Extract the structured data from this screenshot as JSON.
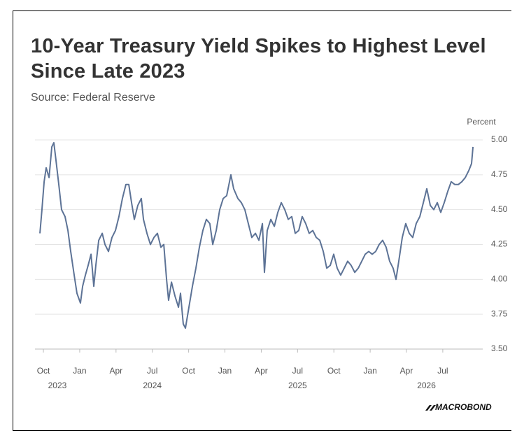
{
  "chart_data": {
    "type": "line",
    "title": "10-Year Treasury Yield Spikes to Highest Level Since Late 2023",
    "subtitle": "Source: Federal Reserve",
    "y_axis_label": "Percent",
    "logo": "MACROBOND",
    "color": "#5d7396",
    "grid": true,
    "xlim": [
      2023.692,
      2026.775
    ],
    "xticks": [
      {
        "value": 2023.75,
        "label": "Oct"
      },
      {
        "value": 2024.0,
        "label": "Jan"
      },
      {
        "value": 2024.25,
        "label": "Apr"
      },
      {
        "value": 2024.5,
        "label": "Jul"
      },
      {
        "value": 2024.75,
        "label": "Oct"
      },
      {
        "value": 2025.0,
        "label": "Jan"
      },
      {
        "value": 2025.25,
        "label": "Apr"
      },
      {
        "value": 2025.5,
        "label": "Jul"
      },
      {
        "value": 2025.75,
        "label": "Oct"
      },
      {
        "value": 2026.0,
        "label": "Jan"
      },
      {
        "value": 2026.25,
        "label": "Apr"
      },
      {
        "value": 2026.5,
        "label": "Jul"
      }
    ],
    "year_labels": [
      2023,
      2024,
      2025,
      2026
    ],
    "ylim": [
      3.5,
      5.0
    ],
    "yticks": [
      {
        "value": 3.5,
        "label": "3.50"
      },
      3.75,
      {
        "value": 4.0,
        "label": "4.00"
      },
      4.25,
      {
        "value": 4.5,
        "label": "4.50"
      },
      4.75,
      {
        "value": 5.0,
        "label": "5.00"
      }
    ],
    "x": [
      2023.726,
      2023.74,
      2023.755,
      2023.769,
      2023.789,
      2023.808,
      2023.822,
      2023.837,
      2023.856,
      2023.875,
      2023.899,
      2023.919,
      2023.938,
      2023.962,
      2023.981,
      2024.005,
      2024.02,
      2024.039,
      2024.058,
      2024.078,
      2024.097,
      2024.111,
      2024.131,
      2024.155,
      2024.174,
      2024.198,
      2024.222,
      2024.246,
      2024.27,
      2024.294,
      2024.318,
      2024.338,
      2024.357,
      2024.376,
      2024.4,
      2024.424,
      2024.439,
      2024.463,
      2024.487,
      2024.511,
      2024.535,
      2024.559,
      2024.579,
      2024.598,
      2024.612,
      2024.632,
      2024.656,
      2024.68,
      2024.694,
      2024.713,
      2024.728,
      2024.752,
      2024.776,
      2024.8,
      2024.824,
      2024.848,
      2024.872,
      2024.896,
      2024.916,
      2024.94,
      2024.964,
      2024.988,
      2025.012,
      2025.041,
      2025.06,
      2025.089,
      2025.113,
      2025.137,
      2025.161,
      2025.185,
      2025.21,
      2025.234,
      2025.258,
      2025.272,
      2025.291,
      2025.316,
      2025.34,
      2025.364,
      2025.388,
      2025.412,
      2025.436,
      2025.46,
      2025.484,
      2025.508,
      2025.532,
      2025.556,
      2025.58,
      2025.605,
      2025.629,
      2025.653,
      2025.677,
      2025.701,
      2025.725,
      2025.749,
      2025.773,
      2025.797,
      2025.821,
      2025.845,
      2025.869,
      2025.894,
      2025.918,
      2025.942,
      2025.966,
      2025.99,
      2026.014,
      2026.038,
      2026.062,
      2026.086,
      2026.11,
      2026.134,
      2026.158,
      2026.178,
      2026.197,
      2026.221,
      2026.245,
      2026.269,
      2026.293,
      2026.317,
      2026.342,
      2026.366,
      2026.39,
      2026.414,
      2026.438,
      2026.462,
      2026.486,
      2026.51,
      2026.534,
      2026.558,
      2026.583,
      2026.607,
      2026.631,
      2026.655,
      2026.679,
      2026.698,
      2026.708
    ],
    "values": [
      4.33,
      4.5,
      4.7,
      4.8,
      4.73,
      4.95,
      4.98,
      4.85,
      4.68,
      4.5,
      4.45,
      4.35,
      4.2,
      4.03,
      3.9,
      3.83,
      3.95,
      4.03,
      4.1,
      4.18,
      3.95,
      4.1,
      4.28,
      4.33,
      4.25,
      4.2,
      4.3,
      4.35,
      4.45,
      4.58,
      4.68,
      4.68,
      4.55,
      4.43,
      4.53,
      4.58,
      4.43,
      4.33,
      4.25,
      4.3,
      4.33,
      4.23,
      4.25,
      4.0,
      3.85,
      3.98,
      3.88,
      3.8,
      3.9,
      3.68,
      3.65,
      3.8,
      3.95,
      4.08,
      4.23,
      4.35,
      4.43,
      4.4,
      4.25,
      4.35,
      4.5,
      4.58,
      4.6,
      4.75,
      4.65,
      4.58,
      4.55,
      4.5,
      4.4,
      4.3,
      4.33,
      4.28,
      4.4,
      4.05,
      4.35,
      4.43,
      4.38,
      4.48,
      4.55,
      4.5,
      4.43,
      4.45,
      4.33,
      4.35,
      4.45,
      4.4,
      4.33,
      4.35,
      4.3,
      4.28,
      4.2,
      4.08,
      4.1,
      4.18,
      4.08,
      4.03,
      4.08,
      4.13,
      4.1,
      4.05,
      4.08,
      4.13,
      4.18,
      4.2,
      4.18,
      4.2,
      4.25,
      4.28,
      4.23,
      4.13,
      4.08,
      4.0,
      4.13,
      4.3,
      4.4,
      4.33,
      4.3,
      4.4,
      4.45,
      4.55,
      4.65,
      4.53,
      4.5,
      4.55,
      4.48,
      4.55,
      4.63,
      4.7,
      4.68,
      4.68,
      4.7,
      4.73,
      4.78,
      4.83,
      4.95
    ]
  }
}
